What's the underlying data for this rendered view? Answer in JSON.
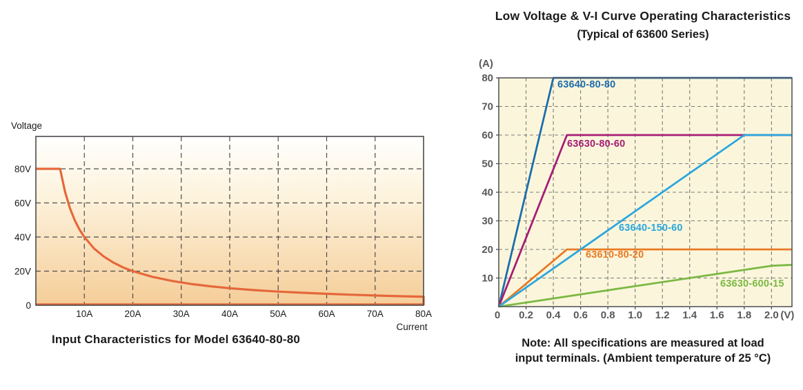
{
  "chart_data": [
    {
      "type": "area",
      "title": "Input Characteristics for Model 63640-80-80",
      "xlabel": "Current",
      "ylabel": "Voltage",
      "xlim": [
        0,
        80
      ],
      "ylim": [
        0,
        99
      ],
      "grid": "dashed",
      "legend": "none",
      "plot_bg_gradient": [
        [
          0,
          "#fffffe"
        ],
        [
          0.35,
          "#fdf3dd"
        ],
        [
          1,
          "#f5cd98"
        ]
      ],
      "x_ticks": [
        {
          "v": 10,
          "label": "10A"
        },
        {
          "v": 20,
          "label": "20A"
        },
        {
          "v": 30,
          "label": "30A"
        },
        {
          "v": 40,
          "label": "40A"
        },
        {
          "v": 50,
          "label": "50A"
        },
        {
          "v": 60,
          "label": "60A"
        },
        {
          "v": 70,
          "label": "70A"
        },
        {
          "v": 80,
          "label": "80A"
        }
      ],
      "y_ticks": [
        {
          "v": 0,
          "label": "0"
        },
        {
          "v": 20,
          "label": "20V"
        },
        {
          "v": 40,
          "label": "40V"
        },
        {
          "v": 60,
          "label": "60V"
        },
        {
          "v": 80,
          "label": "80V"
        }
      ],
      "grid_x": [
        10,
        20,
        30,
        40,
        50,
        60,
        70
      ],
      "grid_y": [
        20,
        40,
        60,
        80
      ],
      "series": [
        {
          "color": "#e5673a",
          "points": [
            [
              0,
              80
            ],
            [
              5,
              80
            ],
            [
              6,
              66.7
            ],
            [
              7,
              57.1
            ],
            [
              8,
              50
            ],
            [
              9,
              44.4
            ],
            [
              10,
              40
            ],
            [
              12,
              33.3
            ],
            [
              14,
              28.6
            ],
            [
              16,
              25
            ],
            [
              18,
              22.2
            ],
            [
              20,
              20
            ],
            [
              24,
              16.7
            ],
            [
              28,
              14.3
            ],
            [
              32,
              12.5
            ],
            [
              36,
              11.1
            ],
            [
              40,
              10
            ],
            [
              45,
              8.9
            ],
            [
              50,
              8
            ],
            [
              55,
              7.3
            ],
            [
              60,
              6.7
            ],
            [
              65,
              6.2
            ],
            [
              70,
              5.7
            ],
            [
              75,
              5.3
            ],
            [
              80,
              5
            ],
            [
              80,
              0.5
            ],
            [
              0,
              0.5
            ]
          ]
        }
      ]
    },
    {
      "type": "line",
      "title": "Low Voltage & V-I Curve Operating Characteristics",
      "subtitle": "(Typical of 63600 Series)",
      "xlabel": "(V)",
      "ylabel": "(A)",
      "xlim": [
        0,
        2.15
      ],
      "ylim": [
        0,
        80
      ],
      "grid": "dashed",
      "plot_bg": "#fbf6db",
      "origin_label": "0",
      "x_ticks": [
        {
          "v": 0.2,
          "label": "0.2"
        },
        {
          "v": 0.4,
          "label": "0.4"
        },
        {
          "v": 0.6,
          "label": "0.6"
        },
        {
          "v": 0.8,
          "label": "0.8"
        },
        {
          "v": 1.0,
          "label": "1.0"
        },
        {
          "v": 1.2,
          "label": "1.2"
        },
        {
          "v": 1.4,
          "label": "1.4"
        },
        {
          "v": 1.6,
          "label": "1.6"
        },
        {
          "v": 1.8,
          "label": "1.8"
        },
        {
          "v": 2.0,
          "label": "2.0"
        }
      ],
      "y_ticks": [
        {
          "v": 10,
          "label": "10"
        },
        {
          "v": 20,
          "label": "20"
        },
        {
          "v": 30,
          "label": "30"
        },
        {
          "v": 40,
          "label": "40"
        },
        {
          "v": 50,
          "label": "50"
        },
        {
          "v": 60,
          "label": "60"
        },
        {
          "v": 70,
          "label": "70"
        },
        {
          "v": 80,
          "label": "80"
        }
      ],
      "grid_x": [
        0.2,
        0.4,
        0.6,
        0.8,
        1.0,
        1.2,
        1.4,
        1.6,
        1.8,
        2.0
      ],
      "grid_y": [
        10,
        20,
        30,
        40,
        50,
        60,
        70
      ],
      "series": [
        {
          "name": "63640-80-80",
          "color": "#1c6cae",
          "points": [
            [
              0,
              0
            ],
            [
              0.4,
              80
            ],
            [
              2.15,
              80
            ]
          ]
        },
        {
          "name": "63630-80-60",
          "color": "#a51d77",
          "points": [
            [
              0,
              0
            ],
            [
              0.5,
              60
            ],
            [
              2.15,
              60
            ]
          ]
        },
        {
          "name": "63610-80-20",
          "color": "#e87a26",
          "points": [
            [
              0,
              0
            ],
            [
              0.5,
              20
            ],
            [
              2.15,
              20
            ]
          ]
        },
        {
          "name": "63630-600-15",
          "color": "#7cb844",
          "points": [
            [
              0,
              0
            ],
            [
              2.0,
              14.3
            ],
            [
              2.15,
              14.6
            ]
          ]
        },
        {
          "name": "63640-150-60",
          "color": "#2ba7df",
          "points": [
            [
              0,
              0
            ],
            [
              1.8,
              60
            ],
            [
              2.15,
              60
            ]
          ]
        }
      ],
      "note_line1": "Note: All specifications are measured at load",
      "note_line2": "input terminals. (Ambient temperature of 25 °C)"
    }
  ]
}
